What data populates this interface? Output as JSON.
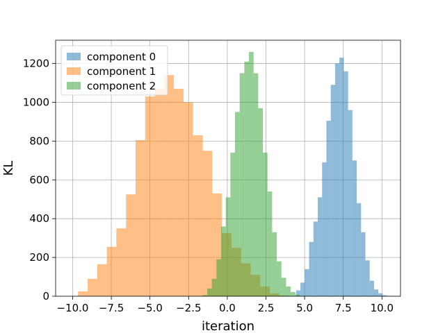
{
  "chart_data": {
    "type": "histogram",
    "xlabel": "iteration",
    "ylabel": "KL",
    "xlim": [
      -11.1,
      11.2
    ],
    "ylim": [
      0,
      1320
    ],
    "x_ticks": [
      -10.0,
      -7.5,
      -5.0,
      -2.5,
      0.0,
      2.5,
      5.0,
      7.5,
      10.0
    ],
    "x_tick_labels": [
      "−10.0",
      "−7.5",
      "−5.0",
      "−2.5",
      "0.0",
      "2.5",
      "5.0",
      "7.5",
      "10.0"
    ],
    "y_ticks": [
      0,
      200,
      400,
      600,
      800,
      1000,
      1200
    ],
    "y_tick_labels": [
      "0",
      "200",
      "400",
      "600",
      "800",
      "1000",
      "1200"
    ],
    "grid": true,
    "legend_position": "top-left",
    "series": [
      {
        "name": "component 0",
        "color": "#1f77b4",
        "opacity": 0.5,
        "bin_edges": [
          4.45,
          4.73,
          5.01,
          5.29,
          5.57,
          5.85,
          6.13,
          6.41,
          6.69,
          6.97,
          7.25,
          7.53,
          7.81,
          8.09,
          8.37,
          8.65,
          8.93,
          9.21,
          9.49,
          9.77,
          10.05,
          10.33,
          10.61
        ],
        "counts": [
          30,
          70,
          140,
          280,
          385,
          510,
          690,
          905,
          1090,
          1200,
          1230,
          1160,
          960,
          700,
          480,
          330,
          185,
          80,
          35,
          15,
          5,
          2
        ]
      },
      {
        "name": "component 1",
        "color": "#ff7f0e",
        "opacity": 0.5,
        "bin_edges": [
          -9.65,
          -9.03,
          -8.41,
          -7.79,
          -7.17,
          -6.55,
          -5.93,
          -5.31,
          -4.69,
          -4.07,
          -3.45,
          -2.83,
          -2.21,
          -1.59,
          -0.97,
          -0.35,
          0.27,
          0.89,
          1.51,
          2.13,
          2.75,
          3.37,
          4.0
        ],
        "counts": [
          25,
          90,
          165,
          255,
          350,
          525,
          805,
          1030,
          1070,
          1140,
          1070,
          1000,
          830,
          750,
          530,
          325,
          250,
          170,
          110,
          50,
          15,
          4
        ]
      },
      {
        "name": "component 2",
        "color": "#2ca02c",
        "opacity": 0.5,
        "bin_edges": [
          -1.6,
          -1.3,
          -1.0,
          -0.7,
          -0.4,
          -0.1,
          0.2,
          0.5,
          0.8,
          1.1,
          1.4,
          1.7,
          2.0,
          2.3,
          2.6,
          2.9,
          3.2,
          3.5,
          3.8,
          4.1,
          4.4,
          4.7,
          5.0
        ],
        "counts": [
          6,
          40,
          90,
          190,
          360,
          510,
          740,
          950,
          1150,
          1210,
          1260,
          1150,
          970,
          740,
          540,
          330,
          180,
          95,
          50,
          22,
          8,
          2
        ]
      }
    ]
  }
}
